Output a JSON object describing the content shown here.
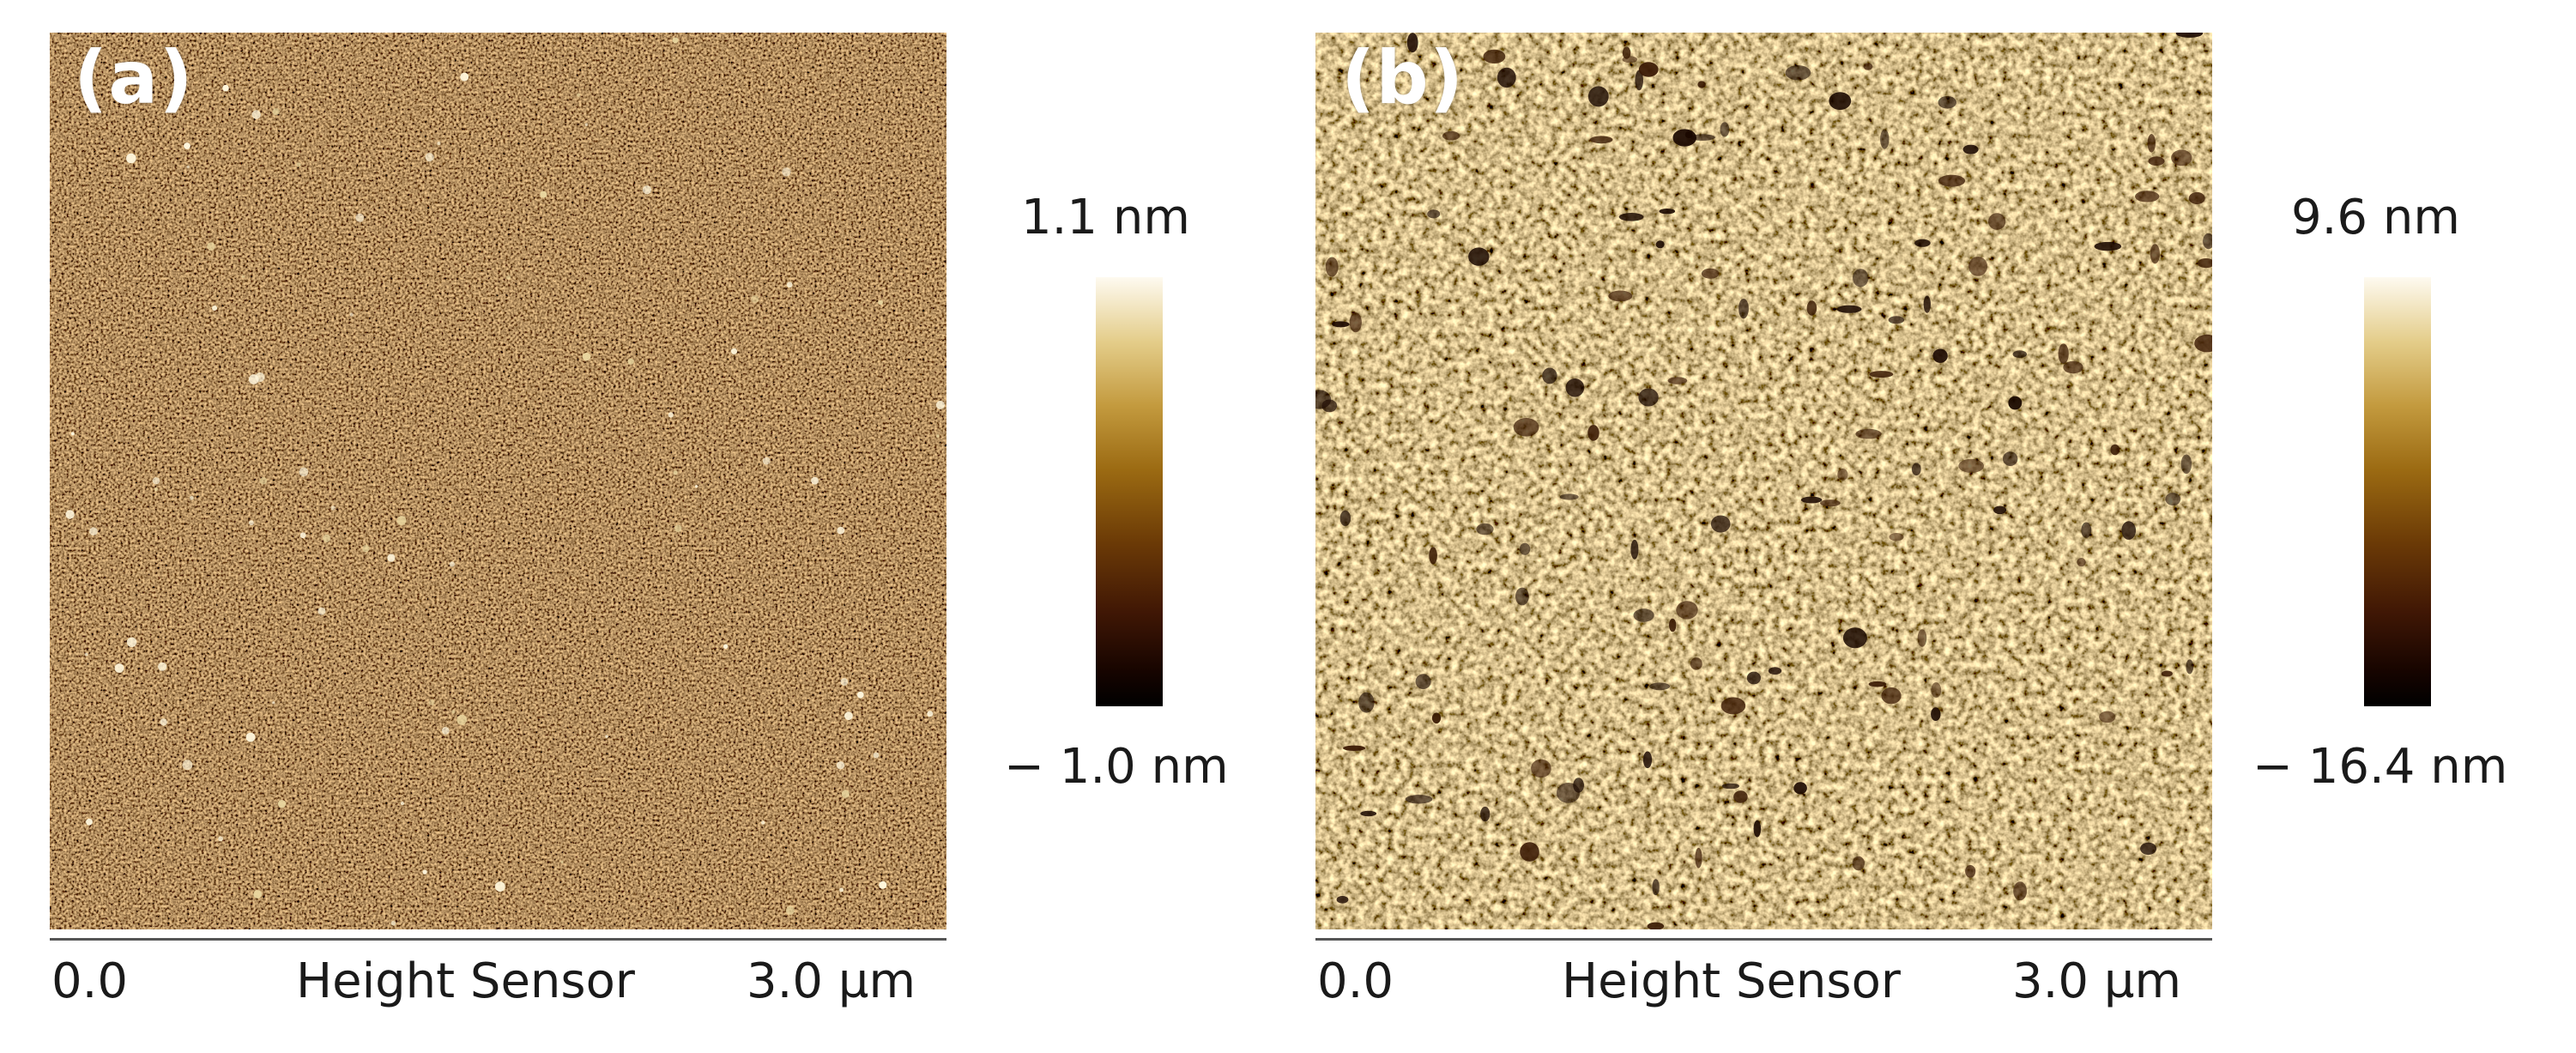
{
  "panels": [
    {
      "label": "(a)",
      "colorbar": {
        "max": "1.1 nm",
        "min": "− 1.0 nm"
      },
      "axis": {
        "start": "0.0",
        "channel": "Height Sensor",
        "end": "3.0 µm"
      },
      "texture": "fine-grained dark-brown surface with sparse bright particles"
    },
    {
      "label": "(b)",
      "colorbar": {
        "max": "9.6 nm",
        "min": "− 16.4 nm"
      },
      "axis": {
        "start": "0.0",
        "channel": "Height Sensor",
        "end": "3.0 µm"
      },
      "texture": "coarse golden granular surface with dark pores"
    }
  ],
  "colormap": {
    "name": "afmhot-brown",
    "stops": [
      "#fefaf0",
      "#e4cd8a",
      "#c39a3e",
      "#9b6a12",
      "#6b3a06",
      "#401705",
      "#160400",
      "#000000"
    ]
  },
  "colors": {
    "panel_a_base": "#6e3d0a",
    "panel_b_base": "#c89a45",
    "label_text": "#ffffff",
    "scale_text": "#1a1a1a"
  }
}
